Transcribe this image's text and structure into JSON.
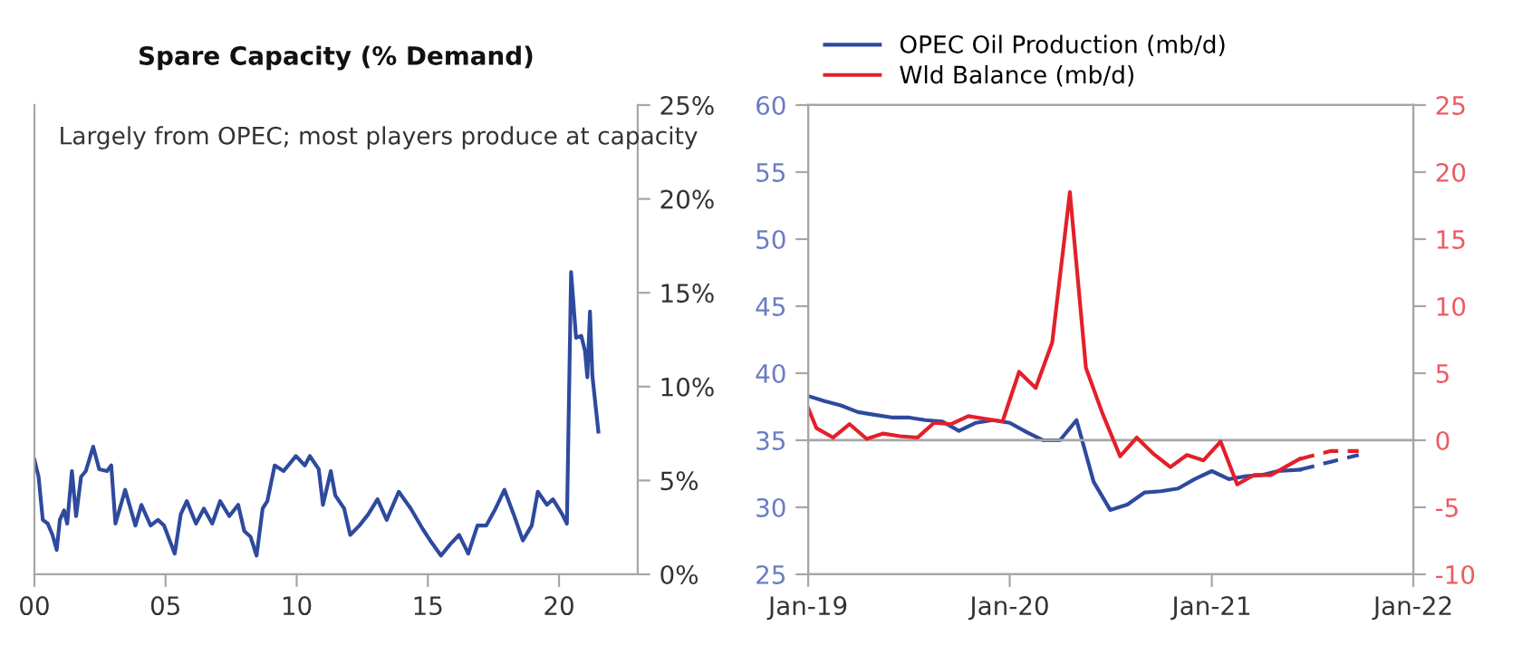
{
  "chart_data": [
    {
      "type": "line",
      "title": "Spare Capacity (% Demand)",
      "annotations": [
        "Largely from OPEC; most players produce at capacity"
      ],
      "xlim": [
        0,
        23
      ],
      "xticks": [
        {
          "value": 0,
          "label": "00"
        },
        {
          "value": 5,
          "label": "05"
        },
        {
          "value": 10,
          "label": "10"
        },
        {
          "value": 15,
          "label": "15"
        },
        {
          "value": 20,
          "label": "20"
        }
      ],
      "ylim": [
        0,
        25
      ],
      "yticks": [
        {
          "value": 0,
          "label": "0%"
        },
        {
          "value": 5,
          "label": "5%"
        },
        {
          "value": 10,
          "label": "10%"
        },
        {
          "value": 15,
          "label": "15%"
        },
        {
          "value": 20,
          "label": "20%"
        },
        {
          "value": 25,
          "label": "25%"
        }
      ],
      "series": [
        {
          "color": "#2e4a9e",
          "x": [
            0,
            0.16,
            0.32,
            0.51,
            0.69,
            0.85,
            0.97,
            1.13,
            1.25,
            1.43,
            1.59,
            1.78,
            1.96,
            2.24,
            2.47,
            2.77,
            2.93,
            3.09,
            3.46,
            3.85,
            4.08,
            4.43,
            4.71,
            4.94,
            5.35,
            5.58,
            5.81,
            6.16,
            6.46,
            6.78,
            7.08,
            7.43,
            7.77,
            8.0,
            8.24,
            8.47,
            8.7,
            8.88,
            9.16,
            9.5,
            9.97,
            10.31,
            10.5,
            10.84,
            11.0,
            11.3,
            11.47,
            11.81,
            12.04,
            12.39,
            12.73,
            13.08,
            13.43,
            13.89,
            14.35,
            14.81,
            15.09,
            15.5,
            15.85,
            16.19,
            16.54,
            16.89,
            17.23,
            17.58,
            17.92,
            18.27,
            18.62,
            18.96,
            19.19,
            19.54,
            19.77,
            20.12,
            20.3,
            20.46,
            20.65,
            20.85,
            20.99,
            21.08,
            21.18,
            21.27,
            21.5
          ],
          "values": [
            6.1,
            5.2,
            2.9,
            2.7,
            2.1,
            1.3,
            2.9,
            3.4,
            2.7,
            5.5,
            3.1,
            5.2,
            5.5,
            6.8,
            5.6,
            5.5,
            5.8,
            2.7,
            4.5,
            2.6,
            3.7,
            2.6,
            2.9,
            2.6,
            1.1,
            3.2,
            3.9,
            2.7,
            3.5,
            2.7,
            3.9,
            3.1,
            3.7,
            2.3,
            2.0,
            1.0,
            3.5,
            3.9,
            5.8,
            5.5,
            6.3,
            5.8,
            6.3,
            5.6,
            3.7,
            5.5,
            4.2,
            3.5,
            2.1,
            2.6,
            3.2,
            4.0,
            2.9,
            4.4,
            3.5,
            2.4,
            1.8,
            1.0,
            1.6,
            2.1,
            1.1,
            2.6,
            2.6,
            3.5,
            4.5,
            3.2,
            1.8,
            2.6,
            4.4,
            3.7,
            4.0,
            3.2,
            2.7,
            16.1,
            12.6,
            12.7,
            11.9,
            10.5,
            14.0,
            10.6,
            7.6
          ]
        }
      ]
    },
    {
      "type": "line",
      "legend": "top",
      "xlim": [
        "2019-01-01",
        "2022-01-01"
      ],
      "xticks": [
        {
          "value": "2019-01-01",
          "label": "Jan-19"
        },
        {
          "value": "2020-01-01",
          "label": "Jan-20"
        },
        {
          "value": "2021-01-01",
          "label": "Jan-21"
        },
        {
          "value": "2022-01-01",
          "label": "Jan-22"
        }
      ],
      "ylim": [
        25,
        60
      ],
      "yticks": [
        25,
        30,
        35,
        40,
        45,
        50,
        55,
        60
      ],
      "y2lim": [
        -10,
        25
      ],
      "y2ticks": [
        -10,
        -5,
        0,
        5,
        10,
        15,
        20,
        25
      ],
      "ref_lines": [
        {
          "axis": "y2",
          "value": 0,
          "color": "#a6a6a6"
        }
      ],
      "series": [
        {
          "name": "OPEC Oil Production (mb/d)",
          "color": "#2e4a9e",
          "x": [
            "2019-01-01",
            "2019-02-01",
            "2019-03-01",
            "2019-04-01",
            "2019-05-01",
            "2019-06-01",
            "2019-07-01",
            "2019-08-01",
            "2019-09-01",
            "2019-10-01",
            "2019-11-01",
            "2019-12-01",
            "2020-01-01",
            "2020-02-01",
            "2020-03-01",
            "2020-04-01",
            "2020-05-01",
            "2020-06-01",
            "2020-07-01",
            "2020-08-01",
            "2020-09-01",
            "2020-10-01",
            "2020-11-01",
            "2020-12-01",
            "2021-01-01",
            "2021-02-01",
            "2021-03-01",
            "2021-04-01",
            "2021-05-01",
            "2021-06-09"
          ],
          "values": [
            38.3,
            37.9,
            37.6,
            37.1,
            36.9,
            36.7,
            36.7,
            36.5,
            36.4,
            35.7,
            36.3,
            36.5,
            36.3,
            35.6,
            35.0,
            35.0,
            36.5,
            31.9,
            29.8,
            30.2,
            31.1,
            31.2,
            31.4,
            32.1,
            32.7,
            32.1,
            32.3,
            32.4,
            32.7,
            32.8
          ]
        },
        {
          "name": "Wld Balance (mb/d)",
          "color": "#e3202a",
          "axis": "y2",
          "x": [
            "2019-01-01",
            "2019-01-16",
            "2019-02-15",
            "2019-03-17",
            "2019-04-17",
            "2019-05-17",
            "2019-06-16",
            "2019-07-18",
            "2019-08-17",
            "2019-09-17",
            "2019-10-18",
            "2019-11-17",
            "2019-12-19",
            "2020-01-18",
            "2020-02-17",
            "2020-03-18",
            "2020-04-19",
            "2020-05-18",
            "2020-06-17",
            "2020-07-19",
            "2020-08-18",
            "2020-09-17",
            "2020-10-18",
            "2020-11-17",
            "2020-12-17",
            "2021-01-17",
            "2021-02-16",
            "2021-03-18",
            "2021-04-18",
            "2021-05-18",
            "2021-06-09"
          ],
          "values": [
            2.4,
            0.9,
            0.2,
            1.2,
            0.1,
            0.5,
            0.3,
            0.2,
            1.3,
            1.2,
            1.8,
            1.6,
            1.4,
            5.1,
            3.9,
            7.3,
            18.5,
            5.4,
            2.0,
            -1.2,
            0.2,
            -1.0,
            -2.0,
            -1.1,
            -1.5,
            -0.1,
            -3.3,
            -2.6,
            -2.6,
            -1.9,
            -1.4
          ]
        },
        {
          "color": "#2e4a9e",
          "line_style": "dashed",
          "x": [
            "2021-06-09",
            "2021-08-05",
            "2021-09-24"
          ],
          "values": [
            32.8,
            33.4,
            33.9
          ]
        },
        {
          "color": "#e3202a",
          "line_style": "dashed",
          "axis": "y2",
          "x": [
            "2021-06-09",
            "2021-08-05",
            "2021-09-24"
          ],
          "values": [
            -1.4,
            -0.8,
            -0.8
          ]
        }
      ]
    }
  ]
}
